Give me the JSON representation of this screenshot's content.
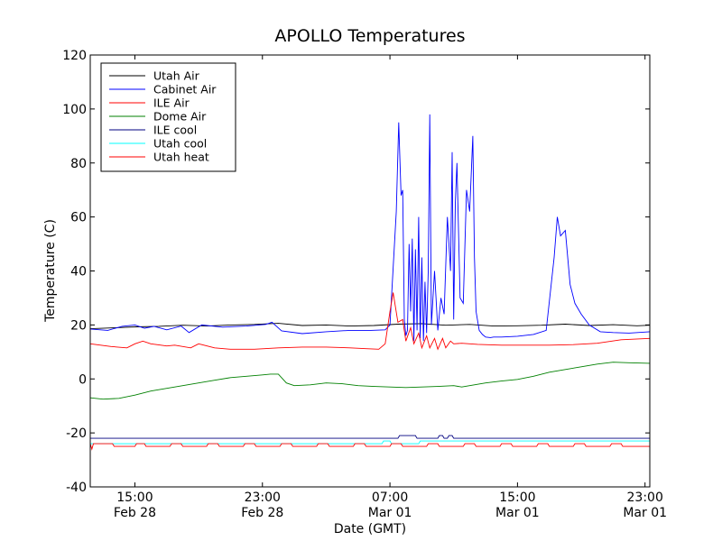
{
  "chart_data": {
    "type": "line",
    "title": "APOLLO Temperatures",
    "xlabel": "Date (GMT)",
    "ylabel": "Temperature (C)",
    "xlim_hours": [
      11.2,
      46.3
    ],
    "ylim": [
      -40,
      120
    ],
    "y_ticks": [
      {
        "value": -40,
        "label": "-40"
      },
      {
        "value": -20,
        "label": "-20"
      },
      {
        "value": 0,
        "label": "0"
      },
      {
        "value": 20,
        "label": "20"
      },
      {
        "value": 40,
        "label": "40"
      },
      {
        "value": 60,
        "label": "60"
      },
      {
        "value": 80,
        "label": "80"
      },
      {
        "value": 100,
        "label": "100"
      },
      {
        "value": 120,
        "label": "120"
      }
    ],
    "x_ticks": [
      {
        "hour": 14,
        "time": "15:00",
        "date": "Feb 28"
      },
      {
        "hour": 22,
        "time": "23:00",
        "date": "Feb 28"
      },
      {
        "hour": 30,
        "time": "07:00",
        "date": "Mar 01"
      },
      {
        "hour": 38,
        "time": "15:00",
        "date": "Mar 01"
      },
      {
        "hour": 46,
        "time": "23:00",
        "date": "Mar 01"
      }
    ],
    "legend": {
      "position": "top-left"
    },
    "series": [
      {
        "name": "Utah Air",
        "color": "#000000",
        "x": [
          11.2,
          12.5,
          14,
          15.5,
          17,
          18.5,
          20,
          21.5,
          23,
          24.5,
          26,
          27.5,
          29,
          30.5,
          32,
          33.5,
          35,
          36.5,
          38,
          39.5,
          41,
          42.5,
          44,
          45.5,
          46.3
        ],
        "y": [
          18.6,
          18.9,
          19.3,
          19.5,
          19.9,
          19.6,
          20.0,
          20.2,
          20.6,
          19.8,
          20.0,
          19.6,
          19.8,
          20.3,
          20.5,
          19.9,
          20.2,
          19.6,
          19.7,
          19.9,
          20.3,
          19.8,
          20.1,
          19.7,
          19.9
        ]
      },
      {
        "name": "Cabinet Air",
        "color": "#0000ff",
        "x": [
          11.2,
          12.3,
          13.2,
          14.0,
          14.6,
          15.2,
          16.0,
          16.9,
          17.4,
          18.2,
          19.5,
          21.0,
          22.2,
          22.6,
          23.2,
          24.5,
          26.0,
          27.5,
          28.8,
          29.7,
          30.0,
          30.4,
          30.55,
          30.7,
          30.8,
          30.9,
          31.0,
          31.1,
          31.2,
          31.3,
          31.4,
          31.5,
          31.6,
          31.7,
          31.8,
          31.9,
          32.0,
          32.1,
          32.2,
          32.3,
          32.4,
          32.5,
          32.6,
          32.8,
          33.0,
          33.2,
          33.4,
          33.6,
          33.8,
          33.9,
          34.0,
          34.1,
          34.2,
          34.4,
          34.6,
          34.8,
          35.0,
          35.2,
          35.3,
          35.4,
          35.6,
          35.8,
          36.0,
          36.3,
          36.5,
          37.0,
          38.0,
          39.0,
          39.8,
          40.3,
          40.5,
          40.7,
          41.0,
          41.3,
          41.6,
          42.0,
          42.5,
          43.2,
          44.0,
          45.0,
          46.3
        ],
        "y": [
          18.5,
          18.0,
          19.5,
          20.0,
          18.8,
          19.5,
          18.2,
          19.6,
          17.2,
          20.0,
          19.2,
          19.6,
          20.2,
          21.0,
          17.8,
          16.8,
          17.5,
          18.0,
          18.0,
          18.2,
          20.0,
          62.0,
          95.0,
          68.0,
          70.0,
          22.0,
          16.0,
          18.0,
          50.0,
          25.0,
          52.0,
          14.0,
          48.0,
          18.0,
          60.0,
          15.0,
          45.0,
          14.0,
          36.0,
          17.0,
          40.0,
          98.0,
          20.0,
          40.0,
          18.0,
          30.0,
          24.0,
          60.0,
          40.0,
          84.0,
          22.0,
          65.0,
          80.0,
          30.0,
          28.0,
          70.0,
          62.0,
          90.0,
          45.0,
          25.0,
          18.0,
          16.5,
          15.5,
          15.3,
          15.5,
          15.5,
          15.8,
          16.5,
          18.0,
          45.0,
          60.0,
          53.0,
          55.0,
          35.0,
          28.0,
          24.0,
          20.0,
          17.5,
          17.2,
          17.0,
          17.5
        ]
      },
      {
        "name": "ILE Air",
        "color": "#ff0000",
        "x": [
          11.2,
          12.5,
          13.5,
          14.0,
          14.5,
          15.0,
          16.0,
          16.5,
          17.5,
          18.0,
          19.0,
          20.0,
          21.5,
          23.0,
          24.5,
          26.0,
          27.5,
          28.5,
          29.3,
          29.7,
          30.0,
          30.2,
          30.5,
          30.8,
          31.0,
          31.3,
          31.5,
          31.8,
          32.0,
          32.3,
          32.5,
          32.8,
          33.0,
          33.3,
          33.5,
          33.8,
          34.0,
          34.5,
          35.5,
          37.0,
          38.5,
          40.0,
          41.5,
          43.0,
          44.5,
          46.3
        ],
        "y": [
          13.0,
          12.0,
          11.5,
          13.0,
          14.0,
          13.0,
          12.2,
          12.5,
          11.5,
          13.0,
          11.5,
          11.0,
          11.0,
          11.5,
          11.8,
          11.8,
          11.5,
          11.2,
          11.0,
          13.0,
          25.0,
          32.0,
          21.0,
          22.0,
          14.0,
          19.0,
          13.0,
          17.0,
          11.5,
          16.0,
          11.5,
          15.0,
          11.0,
          15.0,
          11.5,
          14.0,
          13.0,
          13.2,
          12.8,
          12.5,
          12.5,
          12.5,
          12.7,
          13.2,
          14.5,
          15.0
        ]
      },
      {
        "name": "Dome Air",
        "color": "#008000",
        "x": [
          11.2,
          12.0,
          13.0,
          14.0,
          15.0,
          16.0,
          17.0,
          18.0,
          19.0,
          20.0,
          21.0,
          22.0,
          22.5,
          23.0,
          23.5,
          24.0,
          25.0,
          26.0,
          27.0,
          28.0,
          29.0,
          30.0,
          31.0,
          32.0,
          33.0,
          34.0,
          34.5,
          35.0,
          36.0,
          37.0,
          38.0,
          39.0,
          40.0,
          41.0,
          42.0,
          43.0,
          44.0,
          45.0,
          46.3
        ],
        "y": [
          -7.0,
          -7.5,
          -7.2,
          -6.0,
          -4.5,
          -3.5,
          -2.5,
          -1.5,
          -0.5,
          0.5,
          1.0,
          1.5,
          1.8,
          1.8,
          -1.5,
          -2.5,
          -2.2,
          -1.5,
          -1.8,
          -2.5,
          -2.8,
          -3.0,
          -3.2,
          -3.0,
          -2.8,
          -2.5,
          -3.0,
          -2.5,
          -1.5,
          -0.8,
          -0.2,
          1.0,
          2.5,
          3.5,
          4.5,
          5.5,
          6.2,
          6.0,
          5.8
        ]
      },
      {
        "name": "ILE cool",
        "color": "#000080",
        "x": [
          11.2,
          30.5,
          30.6,
          31.6,
          31.7,
          33.0,
          33.1,
          33.3,
          33.4,
          33.6,
          33.7,
          33.9,
          34.0,
          34.2,
          34.3,
          46.3
        ],
        "y": [
          -22.0,
          -22.0,
          -21.0,
          -21.0,
          -22.0,
          -22.0,
          -21.0,
          -21.0,
          -22.0,
          -22.0,
          -21.0,
          -21.0,
          -22.0,
          -22.0,
          -22.0,
          -22.0
        ]
      },
      {
        "name": "Utah cool",
        "color": "#00ffff",
        "x": [
          11.2,
          29.5,
          29.6,
          30.0,
          30.1,
          31.8,
          31.9,
          46.3
        ],
        "y": [
          -24.0,
          -24.0,
          -23.0,
          -23.0,
          -24.0,
          -24.0,
          -23.0,
          -23.0
        ]
      },
      {
        "name": "Utah heat",
        "color": "#ff0000",
        "x": [
          11.2,
          11.3,
          11.4,
          12.6,
          12.7,
          14.0,
          14.1,
          14.6,
          14.7,
          16.2,
          16.3,
          16.9,
          17.0,
          18.5,
          18.6,
          19.2,
          19.3,
          20.8,
          20.9,
          21.5,
          21.6,
          23.1,
          23.2,
          23.8,
          23.9,
          25.4,
          25.5,
          26.1,
          26.2,
          27.7,
          27.8,
          28.4,
          28.5,
          30.0,
          30.1,
          30.7,
          30.8,
          32.3,
          32.4,
          33.0,
          33.1,
          34.6,
          34.7,
          35.3,
          35.4,
          36.9,
          37.0,
          37.6,
          37.7,
          39.2,
          39.3,
          39.9,
          40.0,
          41.5,
          41.6,
          42.2,
          42.3,
          43.8,
          43.9,
          44.5,
          44.6,
          46.3
        ],
        "y": [
          -24.0,
          -26.0,
          -24.0,
          -24.0,
          -25.0,
          -25.0,
          -24.0,
          -24.0,
          -25.0,
          -25.0,
          -24.0,
          -24.0,
          -25.0,
          -25.0,
          -24.0,
          -24.0,
          -25.0,
          -25.0,
          -24.0,
          -24.0,
          -25.0,
          -25.0,
          -24.0,
          -24.0,
          -25.0,
          -25.0,
          -24.0,
          -24.0,
          -25.0,
          -25.0,
          -24.0,
          -24.0,
          -25.0,
          -25.0,
          -24.0,
          -24.0,
          -25.0,
          -25.0,
          -24.0,
          -24.0,
          -25.0,
          -25.0,
          -24.0,
          -24.0,
          -25.0,
          -25.0,
          -24.0,
          -24.0,
          -25.0,
          -25.0,
          -24.0,
          -24.0,
          -25.0,
          -25.0,
          -24.0,
          -24.0,
          -25.0,
          -25.0,
          -24.0,
          -24.0,
          -25.0,
          -25.0
        ]
      }
    ]
  }
}
